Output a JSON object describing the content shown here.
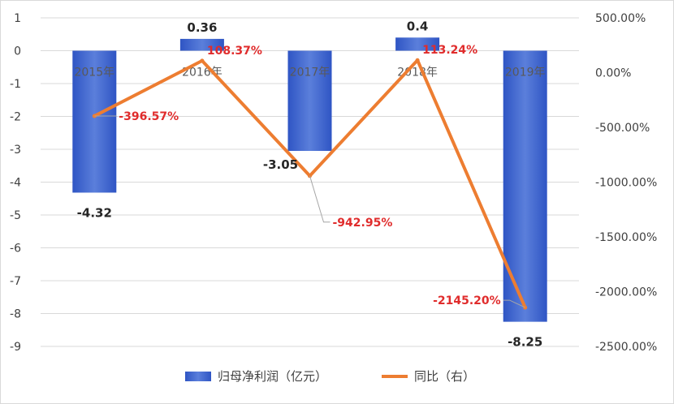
{
  "chart_data": {
    "type": "bar+line",
    "categories": [
      "2015年",
      "2016年",
      "2017年",
      "2018年",
      "2019年"
    ],
    "series": [
      {
        "name": "归母净利润（亿元）",
        "type": "bar",
        "axis": "left",
        "values": [
          -4.32,
          0.36,
          -3.05,
          0.4,
          -8.25
        ],
        "labels": [
          "-4.32",
          "0.36",
          "-3.05",
          "0.4",
          "-8.25"
        ],
        "color": "#3a5fcd"
      },
      {
        "name": "同比（右）",
        "type": "line",
        "axis": "right",
        "values": [
          -396.57,
          108.37,
          -942.95,
          113.24,
          -2145.2
        ],
        "labels": [
          "-396.57%",
          "108.37%",
          "-942.95%",
          "113.24%",
          "-2145.20%"
        ],
        "color": "#ed7d31"
      }
    ],
    "y_left": {
      "min": -9,
      "max": 1,
      "step": 1,
      "ticks": [
        "1",
        "0",
        "-1",
        "-2",
        "-3",
        "-4",
        "-5",
        "-6",
        "-7",
        "-8",
        "-9"
      ]
    },
    "y_right": {
      "min": -2500,
      "max": 500,
      "step": 500,
      "ticks": [
        "500.00%",
        "0.00%",
        "-500.00%",
        "-1000.00%",
        "-1500.00%",
        "-2000.00%",
        "-2500.00%"
      ]
    },
    "grid": true,
    "legend": "bottom",
    "label_color": "#e02c2c"
  }
}
